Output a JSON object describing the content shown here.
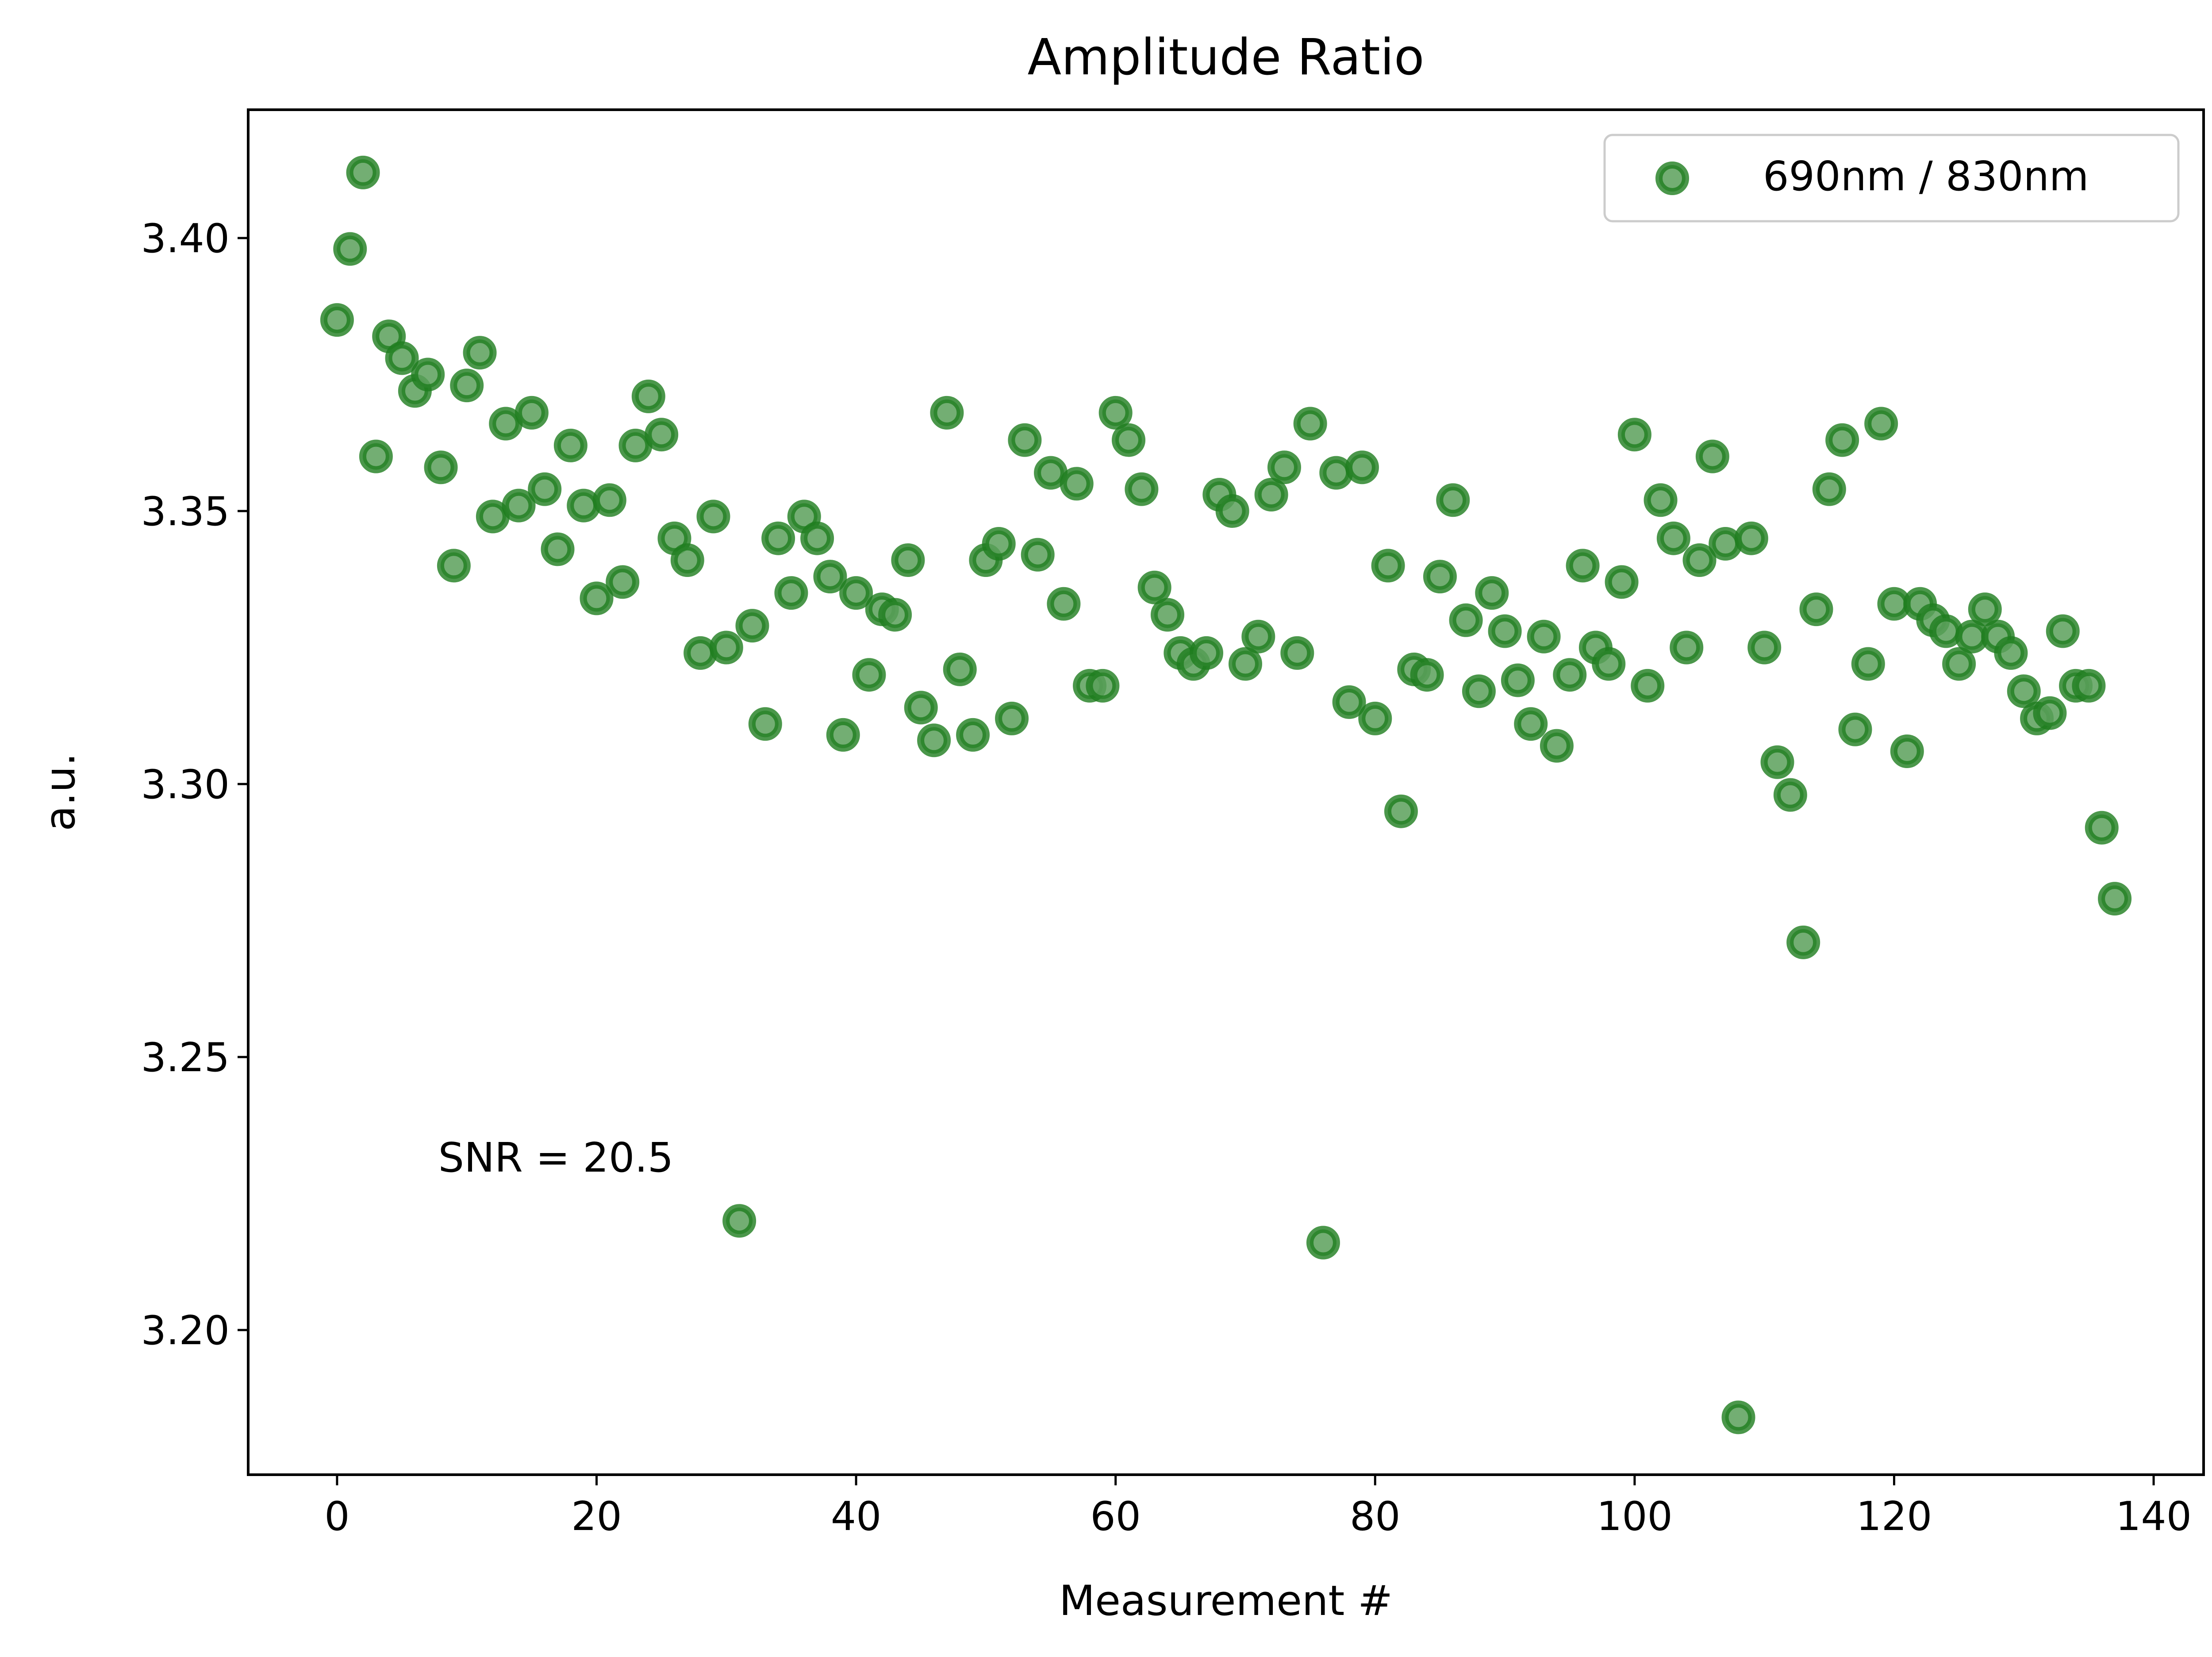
{
  "chart_data": {
    "type": "scatter",
    "title": "Amplitude Ratio",
    "xlabel": "Measurement #",
    "ylabel": "a.u.",
    "xlim": [
      -6.85,
      143.85
    ],
    "ylim": [
      3.1735,
      3.4235
    ],
    "x_ticks": [
      0,
      20,
      40,
      60,
      80,
      100,
      120,
      140
    ],
    "x_tick_labels": [
      "0",
      "20",
      "40",
      "60",
      "80",
      "100",
      "120",
      "140"
    ],
    "y_ticks": [
      3.2,
      3.25,
      3.3,
      3.35,
      3.4
    ],
    "y_tick_labels": [
      "3.20",
      "3.25",
      "3.30",
      "3.35",
      "3.40"
    ],
    "grid": false,
    "legend_position": "top-right",
    "annotation": {
      "text": "SNR = 20.5",
      "x": 7.8,
      "y": 3.229
    },
    "colors": {
      "marker": "#1e7d1e",
      "marker_face": "#5aa05a"
    },
    "series": [
      {
        "name": "690nm / 830nm",
        "x": [
          0,
          1,
          2,
          3,
          4,
          5,
          6,
          7,
          8,
          9,
          10,
          11,
          12,
          13,
          14,
          15,
          16,
          17,
          18,
          19,
          20,
          21,
          22,
          23,
          24,
          25,
          26,
          27,
          28,
          29,
          30,
          31,
          32,
          33,
          34,
          35,
          36,
          37,
          38,
          39,
          40,
          41,
          42,
          43,
          44,
          45,
          46,
          47,
          48,
          49,
          50,
          51,
          52,
          53,
          54,
          55,
          56,
          57,
          58,
          59,
          60,
          61,
          62,
          63,
          64,
          65,
          66,
          67,
          68,
          69,
          70,
          71,
          72,
          73,
          74,
          75,
          76,
          77,
          78,
          79,
          80,
          81,
          82,
          83,
          84,
          85,
          86,
          87,
          88,
          89,
          90,
          91,
          92,
          93,
          94,
          95,
          96,
          97,
          98,
          99,
          100,
          101,
          102,
          103,
          104,
          105,
          106,
          107,
          108,
          109,
          110,
          111,
          112,
          113,
          114,
          115,
          116,
          117,
          118,
          119,
          120,
          121,
          122,
          123,
          124,
          125,
          126,
          127,
          128,
          129,
          130,
          131,
          132,
          133,
          134,
          135,
          136,
          137
        ],
        "y": [
          3.385,
          3.398,
          3.412,
          3.36,
          3.382,
          3.378,
          3.372,
          3.375,
          3.358,
          3.34,
          3.373,
          3.379,
          3.349,
          3.366,
          3.351,
          3.368,
          3.354,
          3.343,
          3.362,
          3.351,
          3.334,
          3.352,
          3.337,
          3.362,
          3.371,
          3.364,
          3.345,
          3.341,
          3.324,
          3.349,
          3.325,
          3.22,
          3.329,
          3.311,
          3.345,
          3.335,
          3.349,
          3.345,
          3.338,
          3.309,
          3.335,
          3.32,
          3.332,
          3.331,
          3.341,
          3.314,
          3.308,
          3.368,
          3.321,
          3.309,
          3.341,
          3.344,
          3.312,
          3.363,
          3.342,
          3.357,
          3.333,
          3.355,
          3.318,
          3.318,
          3.368,
          3.363,
          3.354,
          3.336,
          3.331,
          3.324,
          3.322,
          3.324,
          3.353,
          3.35,
          3.322,
          3.327,
          3.353,
          3.358,
          3.324,
          3.366,
          3.216,
          3.357,
          3.315,
          3.358,
          3.312,
          3.34,
          3.295,
          3.321,
          3.32,
          3.338,
          3.352,
          3.33,
          3.317,
          3.335,
          3.328,
          3.319,
          3.311,
          3.327,
          3.307,
          3.32,
          3.34,
          3.325,
          3.322,
          3.337,
          3.364,
          3.318,
          3.352,
          3.345,
          3.325,
          3.341,
          3.36,
          3.344,
          3.184,
          3.345,
          3.325,
          3.304,
          3.298,
          3.271,
          3.332,
          3.354,
          3.363,
          3.31,
          3.322,
          3.366,
          3.333,
          3.306,
          3.333,
          3.33,
          3.328,
          3.322,
          3.327,
          3.332,
          3.327,
          3.324,
          3.317,
          3.312,
          3.313,
          3.328,
          3.318,
          3.318,
          3.292,
          3.279
        ]
      }
    ]
  }
}
